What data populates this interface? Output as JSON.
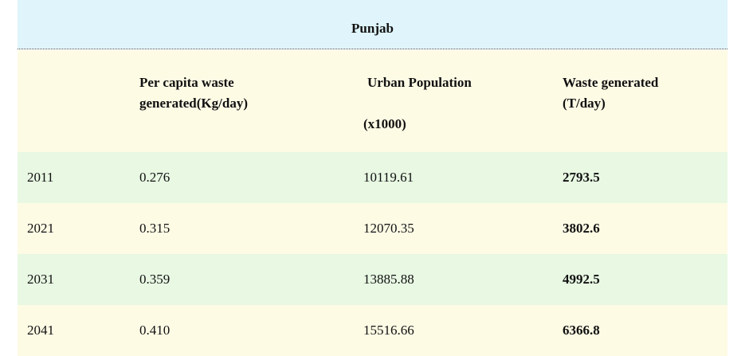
{
  "table": {
    "title": "Punjab",
    "headers": {
      "per_capita_line1": "Per capita waste",
      "per_capita_line2": "generated(Kg/day)",
      "urban_line1": "Urban Population",
      "urban_line2": "(x1000)",
      "waste_line1": "Waste generated",
      "waste_line2": "(T/day)"
    },
    "rows": [
      {
        "year": "2011",
        "per_capita": "0.276",
        "urban": "10119.61",
        "waste": "2793.5"
      },
      {
        "year": "2021",
        "per_capita": "0.315",
        "urban": "12070.35",
        "waste": "3802.6"
      },
      {
        "year": "2031",
        "per_capita": "0.359",
        "urban": "13885.88",
        "waste": "4992.5"
      },
      {
        "year": "2041",
        "per_capita": "0.410",
        "urban": "15516.66",
        "waste": "6366.8"
      }
    ],
    "colors": {
      "title_band": "#dff5fb",
      "header_band": "#fefbe5",
      "row_green": "#e8f8e3",
      "row_yellow": "#fefbe5"
    }
  }
}
